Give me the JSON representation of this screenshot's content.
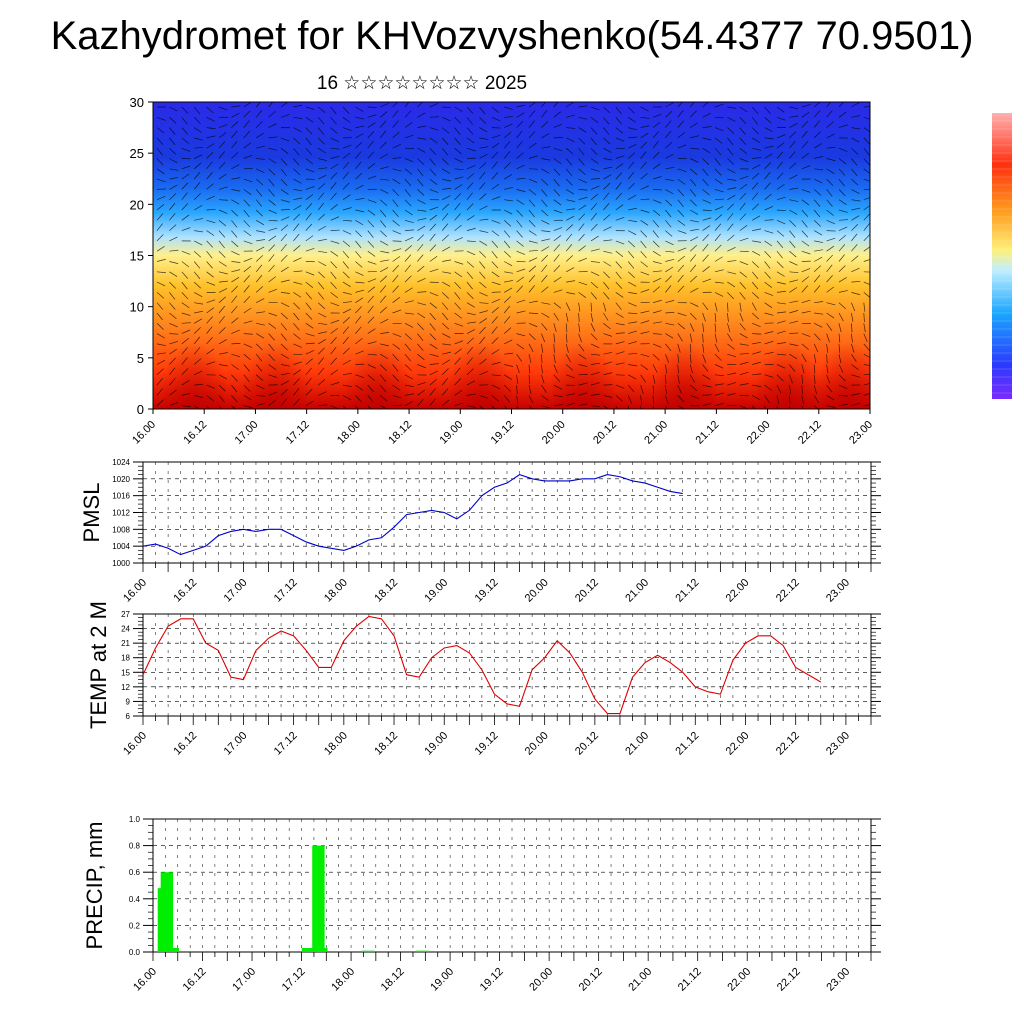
{
  "title": "Kazhydromet for KHVozvyshenko(54.4377 70.9501)",
  "subtitle": "16 ☆☆☆☆☆☆☆☆ 2025",
  "time_ticks": [
    "16.00",
    "16.12",
    "17.00",
    "17.12",
    "18.00",
    "18.12",
    "19.00",
    "19.12",
    "20.00",
    "20.12",
    "21.00",
    "21.12",
    "22.00",
    "22.12",
    "23.00"
  ],
  "colors": {
    "pmsl_line": "#0000cc",
    "temp_line": "#dd0000",
    "precip_bar": "#00ee00"
  },
  "chart_data": [
    {
      "type": "heatmap",
      "name_hint": "vertical-profile",
      "ylabel": "",
      "ylim": [
        0,
        30
      ],
      "yticks": [
        "0",
        "5",
        "10",
        "15",
        "20",
        "25",
        "30"
      ],
      "x_ticks_ref": "time_ticks",
      "colorbar": "vertical, right, red-to-violet",
      "overlay": "wind vectors"
    },
    {
      "type": "line",
      "ylabel": "PMSL",
      "ylim": [
        1000,
        1024
      ],
      "yticks": [
        "1000",
        "1004",
        "1008",
        "1012",
        "1016",
        "1020",
        "1024"
      ],
      "x_step_hours": 6,
      "values": [
        1004,
        1004.5,
        1003.5,
        1002,
        1003,
        1004,
        1006.5,
        1007.5,
        1008,
        1007.5,
        1008,
        1008,
        1006.5,
        1005,
        1004,
        1003.5,
        1003,
        1004,
        1005.5,
        1006,
        1008.5,
        1011.5,
        1012,
        1012.5,
        1012,
        1010.5,
        1012.5,
        1016,
        1018,
        1019,
        1021,
        1020,
        1019.5,
        1019.5,
        1019.5,
        1020,
        1020,
        1021,
        1020.5,
        1019.5,
        1019,
        1018,
        1017,
        1016.5
      ]
    },
    {
      "type": "line",
      "ylabel": "TEMP at 2 M",
      "ylim": [
        6,
        27
      ],
      "yticks": [
        "6",
        "9",
        "12",
        "15",
        "18",
        "21",
        "24",
        "27"
      ],
      "x_step_hours": 6,
      "values": [
        14.5,
        20,
        24.5,
        26,
        26,
        21,
        19.5,
        14,
        13.5,
        19.5,
        22,
        23.5,
        22.5,
        19.5,
        16,
        16,
        21.5,
        24.5,
        26.5,
        26,
        22.5,
        14.5,
        14,
        18,
        20,
        20.5,
        19,
        15.5,
        10.5,
        8.5,
        8,
        15.5,
        18,
        21.5,
        19,
        15,
        9.5,
        6.5,
        6.5,
        14,
        17,
        18.5,
        17,
        15,
        12,
        11,
        10.5,
        17.5,
        21,
        22.5,
        22.5,
        20.5,
        16,
        14.5,
        13
      ]
    },
    {
      "type": "bar",
      "ylabel": "PRECIP, mm",
      "ylim": [
        0,
        1.0
      ],
      "yticks": [
        "0.0",
        "0.2",
        "0.4",
        "0.6",
        "0.8",
        "1.0"
      ],
      "bars": [
        {
          "t": 0.18,
          "value": 0.48
        },
        {
          "t": 0.24,
          "value": 0.6
        },
        {
          "t": 0.3,
          "value": 0.03
        },
        {
          "t": 0.36,
          "value": 0.03
        },
        {
          "t": 3.09,
          "value": 0.03
        },
        {
          "t": 3.3,
          "value": 0.8
        },
        {
          "t": 3.36,
          "value": 0.03
        },
        {
          "t": 4.3,
          "value": 0.01
        },
        {
          "t": 5.4,
          "value": 0.01
        }
      ]
    }
  ]
}
